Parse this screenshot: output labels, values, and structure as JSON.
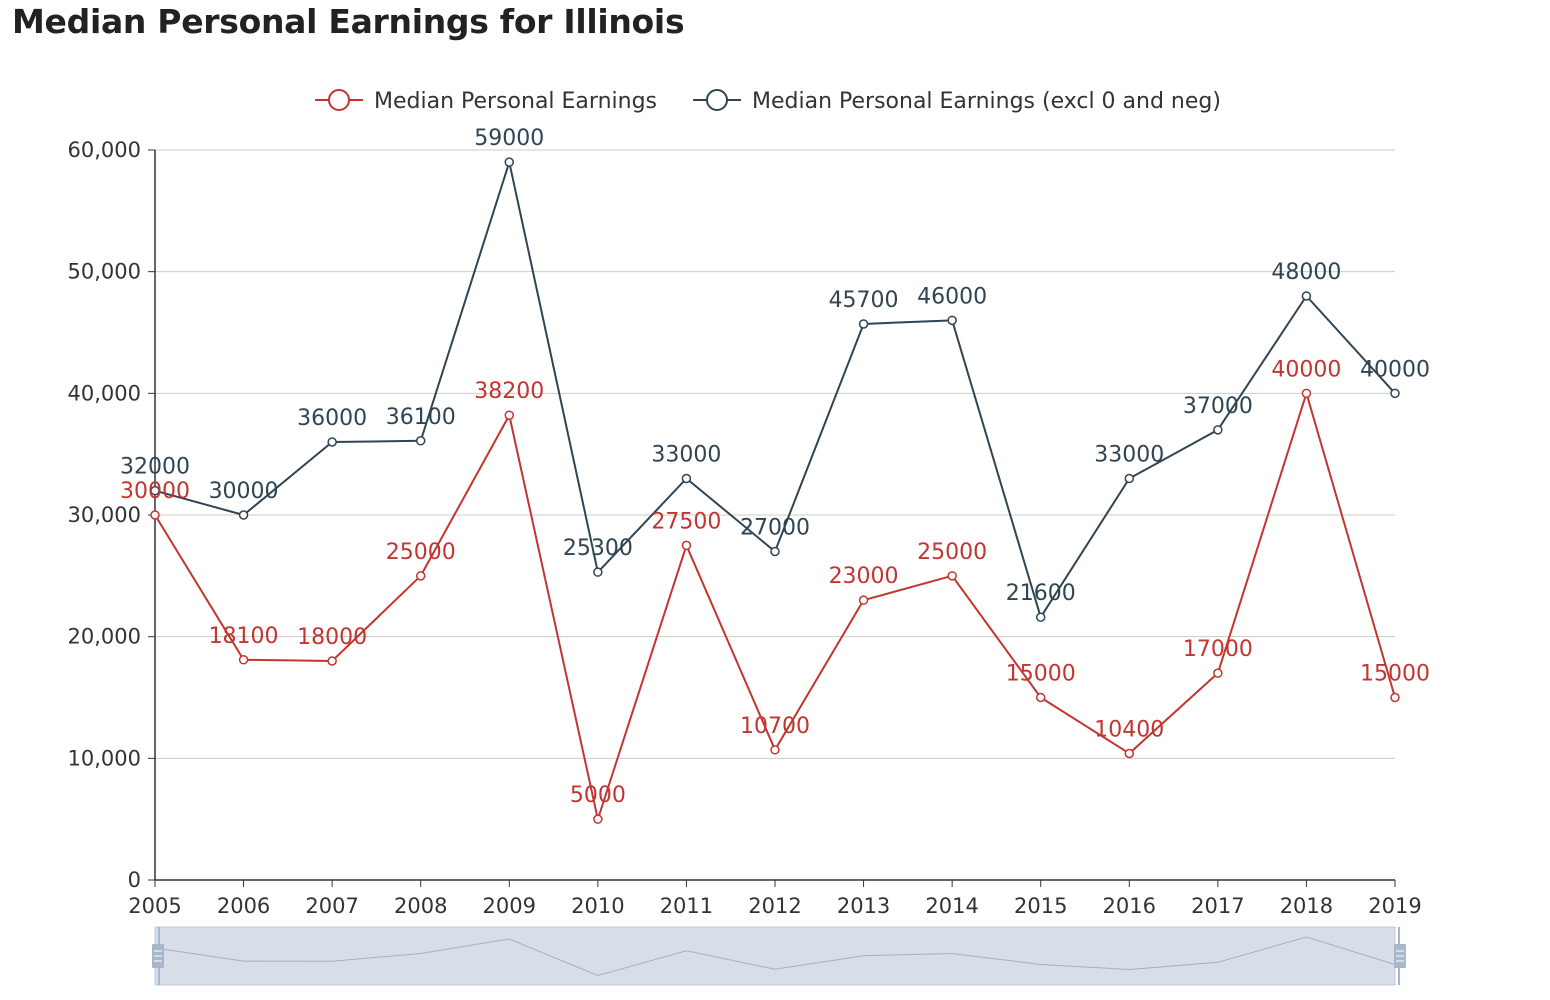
{
  "page": {
    "title": "Median Personal Earnings for Illinois"
  },
  "colors": {
    "series1": "#c23531",
    "series2": "#2f4554",
    "grid": "#cccccc",
    "axis": "#333333",
    "slider": "#d1d8e3"
  },
  "chart_data": {
    "type": "line",
    "title": "Median Personal Earnings for Illinois",
    "xlabel": "",
    "ylabel": "",
    "x": [
      "2005",
      "2006",
      "2007",
      "2008",
      "2009",
      "2010",
      "2011",
      "2012",
      "2013",
      "2014",
      "2015",
      "2016",
      "2017",
      "2018",
      "2019"
    ],
    "ylim": [
      0,
      60000
    ],
    "yticks": [
      0,
      10000,
      20000,
      30000,
      40000,
      50000,
      60000
    ],
    "ytick_labels": [
      "0",
      "10,000",
      "20,000",
      "30,000",
      "40,000",
      "50,000",
      "60,000"
    ],
    "grid": true,
    "legend_position": "top-center",
    "data_zoom_slider": true,
    "series": [
      {
        "name": "Median Personal Earnings",
        "values": [
          30000,
          18100,
          18000,
          25000,
          38200,
          5000,
          27500,
          10700,
          23000,
          25000,
          15000,
          10400,
          17000,
          40000,
          15000
        ]
      },
      {
        "name": "Median Personal Earnings (excl 0 and neg)",
        "values": [
          32000,
          30000,
          36000,
          36100,
          59000,
          25300,
          33000,
          27000,
          45700,
          46000,
          21600,
          33000,
          37000,
          48000,
          40000
        ]
      }
    ]
  }
}
